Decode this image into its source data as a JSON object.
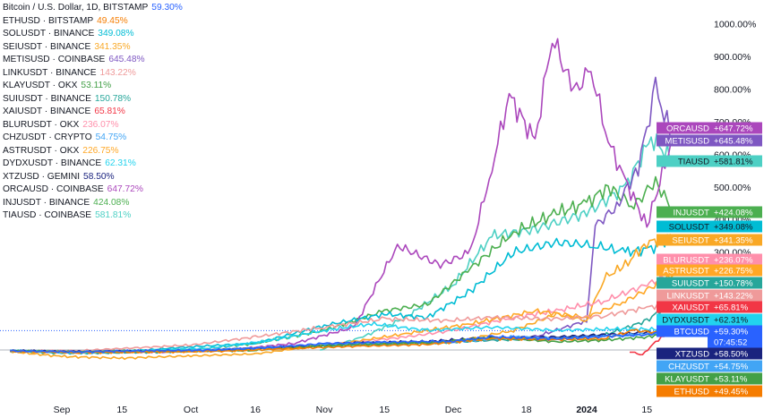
{
  "chart_data": {
    "type": "line",
    "title": "Bitcoin / U.S. Dollar, 1D, BITSTAMP",
    "y_unit": "percent change",
    "y_ticks": [
      "1000.00%",
      "900.00%",
      "800.00%",
      "700.00%",
      "600.00%",
      "500.00%",
      "400.00%",
      "300.00%"
    ],
    "x_ticks": [
      {
        "label": "Sep",
        "date": "2023-09-01",
        "bold": false
      },
      {
        "label": "15",
        "date": "2023-09-15",
        "bold": false
      },
      {
        "label": "Oct",
        "date": "2023-10-01",
        "bold": false
      },
      {
        "label": "16",
        "date": "2023-10-16",
        "bold": false
      },
      {
        "label": "Nov",
        "date": "2023-11-01",
        "bold": false
      },
      {
        "label": "15",
        "date": "2023-11-15",
        "bold": false
      },
      {
        "label": "Dec",
        "date": "2023-12-01",
        "bold": false
      },
      {
        "label": "18",
        "date": "2023-12-18",
        "bold": false
      },
      {
        "label": "2024",
        "date": "2024-01-01",
        "bold": true
      },
      {
        "label": "15",
        "date": "2024-01-15",
        "bold": false
      }
    ],
    "last_tag_time": "07:45:52",
    "series": [
      {
        "name": "Bitcoin / U.S. Dollar, 1D, BITSTAMP",
        "symbol": "BTCUSD",
        "value": 59.3,
        "value_text": "59.30%",
        "tag_text": "+59.30%",
        "color": "#2962ff",
        "points": [
          [
            "2023-08-20",
            -3
          ],
          [
            "2023-09-05",
            -6
          ],
          [
            "2023-09-20",
            -2
          ],
          [
            "2023-10-05",
            -1
          ],
          [
            "2023-10-20",
            8
          ],
          [
            "2023-11-01",
            20
          ],
          [
            "2023-11-15",
            24
          ],
          [
            "2023-12-01",
            27
          ],
          [
            "2023-12-10",
            40
          ],
          [
            "2023-12-25",
            35
          ],
          [
            "2024-01-05",
            42
          ],
          [
            "2024-01-15",
            47
          ],
          [
            "2024-01-21",
            59
          ]
        ]
      },
      {
        "name": "ETHUSD · BITSTAMP",
        "symbol": "ETHUSD",
        "value": 49.45,
        "value_text": "49.45%",
        "tag_text": "+49.45%",
        "color": "#f57c00",
        "points": [
          [
            "2023-08-20",
            -4
          ],
          [
            "2023-09-05",
            -8
          ],
          [
            "2023-09-25",
            -6
          ],
          [
            "2023-10-10",
            -3
          ],
          [
            "2023-10-25",
            5
          ],
          [
            "2023-11-10",
            12
          ],
          [
            "2023-11-25",
            17
          ],
          [
            "2023-12-10",
            35
          ],
          [
            "2023-12-25",
            32
          ],
          [
            "2024-01-05",
            35
          ],
          [
            "2024-01-12",
            60
          ],
          [
            "2024-01-21",
            49
          ]
        ]
      },
      {
        "name": "SOLUSDT · BINANCE",
        "symbol": "SOLUSDT",
        "value": 349.08,
        "value_text": "349.08%",
        "tag_text": "+349.08%",
        "color": "#00bcd4",
        "points": [
          [
            "2023-08-20",
            -2
          ],
          [
            "2023-09-01",
            -10
          ],
          [
            "2023-09-15",
            -5
          ],
          [
            "2023-10-01",
            10
          ],
          [
            "2023-10-16",
            20
          ],
          [
            "2023-11-01",
            75
          ],
          [
            "2023-11-15",
            110
          ],
          [
            "2023-11-25",
            100
          ],
          [
            "2023-12-05",
            180
          ],
          [
            "2023-12-15",
            300
          ],
          [
            "2023-12-25",
            330
          ],
          [
            "2024-01-03",
            320
          ],
          [
            "2024-01-10",
            300
          ],
          [
            "2024-01-16",
            310
          ],
          [
            "2024-01-21",
            349
          ]
        ]
      },
      {
        "name": "SEIUSDT · BINANCE",
        "symbol": "SEIUSDT",
        "value": 341.35,
        "value_text": "341.35%",
        "tag_text": "+341.35%",
        "color": "#f9a825",
        "points": [
          [
            "2023-08-20",
            -5
          ],
          [
            "2023-09-01",
            -20
          ],
          [
            "2023-09-15",
            -25
          ],
          [
            "2023-10-01",
            -18
          ],
          [
            "2023-10-16",
            -12
          ],
          [
            "2023-11-01",
            15
          ],
          [
            "2023-11-15",
            20
          ],
          [
            "2023-12-01",
            25
          ],
          [
            "2023-12-15",
            60
          ],
          [
            "2023-12-25",
            110
          ],
          [
            "2024-01-01",
            90
          ],
          [
            "2024-01-05",
            220
          ],
          [
            "2024-01-10",
            260
          ],
          [
            "2024-01-15",
            330
          ],
          [
            "2024-01-21",
            341
          ]
        ]
      },
      {
        "name": "METISUSD · COINBASE",
        "symbol": "METISUSD",
        "value": 645.48,
        "value_text": "645.48%",
        "tag_text": "+645.48%",
        "color": "#7e57c2",
        "points": [
          [
            "2023-08-20",
            -3
          ],
          [
            "2023-09-05",
            -5
          ],
          [
            "2023-10-05",
            0
          ],
          [
            "2023-10-25",
            10
          ],
          [
            "2023-11-15",
            20
          ],
          [
            "2023-12-05",
            30
          ],
          [
            "2023-12-20",
            40
          ],
          [
            "2024-01-01",
            90
          ],
          [
            "2024-01-03",
            380
          ],
          [
            "2024-01-08",
            440
          ],
          [
            "2024-01-13",
            560
          ],
          [
            "2024-01-17",
            800
          ],
          [
            "2024-01-21",
            645
          ]
        ]
      },
      {
        "name": "LINKUSDT · BINANCE",
        "symbol": "LINKUSDT",
        "value": 143.22,
        "value_text": "143.22%",
        "tag_text": "+143.22%",
        "color": "#ef9a9a",
        "points": [
          [
            "2023-08-20",
            -2
          ],
          [
            "2023-09-05",
            -2
          ],
          [
            "2023-10-01",
            15
          ],
          [
            "2023-10-16",
            40
          ],
          [
            "2023-11-01",
            70
          ],
          [
            "2023-11-15",
            95
          ],
          [
            "2023-11-30",
            90
          ],
          [
            "2023-12-10",
            100
          ],
          [
            "2023-12-25",
            95
          ],
          [
            "2024-01-05",
            105
          ],
          [
            "2024-01-15",
            130
          ],
          [
            "2024-01-21",
            143
          ]
        ]
      },
      {
        "name": "KLAYUSDT · OKX",
        "symbol": "KLAYUSDT",
        "value": 53.11,
        "value_text": "53.11%",
        "tag_text": "+53.11%",
        "color": "#43a047",
        "points": [
          [
            "2023-08-20",
            -3
          ],
          [
            "2023-09-05",
            -6
          ],
          [
            "2023-09-25",
            -4
          ],
          [
            "2023-10-15",
            -2
          ],
          [
            "2023-10-28",
            10
          ],
          [
            "2023-11-10",
            18
          ],
          [
            "2023-11-25",
            22
          ],
          [
            "2023-12-10",
            38
          ],
          [
            "2023-12-25",
            25
          ],
          [
            "2024-01-05",
            30
          ],
          [
            "2024-01-15",
            40
          ],
          [
            "2024-01-21",
            53
          ]
        ]
      },
      {
        "name": "SUIUSDT · BINANCE",
        "symbol": "SUIUSDT",
        "value": 150.78,
        "value_text": "150.78%",
        "tag_text": "+150.78%",
        "color": "#26a69a",
        "points": [
          [
            "2023-08-20",
            -3
          ],
          [
            "2023-09-05",
            -10
          ],
          [
            "2023-09-25",
            -6
          ],
          [
            "2023-10-10",
            0
          ],
          [
            "2023-10-25",
            10
          ],
          [
            "2023-11-10",
            15
          ],
          [
            "2023-11-25",
            20
          ],
          [
            "2023-12-10",
            30
          ],
          [
            "2023-12-25",
            35
          ],
          [
            "2024-01-05",
            45
          ],
          [
            "2024-01-15",
            90
          ],
          [
            "2024-01-21",
            150
          ]
        ]
      },
      {
        "name": "XAIUSDT · BINANCE",
        "symbol": "XAIUSDT",
        "value": 65.81,
        "value_text": "65.81%",
        "tag_text": "+65.81%",
        "color": "#f23645",
        "points": [
          [
            "2024-01-11",
            -5
          ],
          [
            "2024-01-14",
            -15
          ],
          [
            "2024-01-17",
            25
          ],
          [
            "2024-01-19",
            45
          ],
          [
            "2024-01-21",
            65
          ]
        ]
      },
      {
        "name": "BLURUSDT · OKX",
        "symbol": "BLURUSDT",
        "value": 236.07,
        "value_text": "236.07%",
        "tag_text": "+236.07%",
        "color": "#ff8fab",
        "points": [
          [
            "2023-08-20",
            -3
          ],
          [
            "2023-09-05",
            -6
          ],
          [
            "2023-10-01",
            -2
          ],
          [
            "2023-10-16",
            6
          ],
          [
            "2023-11-01",
            15
          ],
          [
            "2023-11-20",
            40
          ],
          [
            "2023-12-01",
            60
          ],
          [
            "2023-12-15",
            100
          ],
          [
            "2023-12-25",
            120
          ],
          [
            "2024-01-05",
            150
          ],
          [
            "2024-01-15",
            200
          ],
          [
            "2024-01-21",
            236
          ]
        ]
      },
      {
        "name": "CHZUSDT · CRYPTO",
        "symbol": "CHZUSDT",
        "value": 54.75,
        "value_text": "54.75%",
        "tag_text": "+54.75%",
        "color": "#42a5f5",
        "points": [
          [
            "2023-08-20",
            -2
          ],
          [
            "2023-09-05",
            -5
          ],
          [
            "2023-09-25",
            -3
          ],
          [
            "2023-10-15",
            5
          ],
          [
            "2023-11-01",
            18
          ],
          [
            "2023-11-15",
            22
          ],
          [
            "2023-12-01",
            25
          ],
          [
            "2023-12-15",
            40
          ],
          [
            "2023-12-25",
            35
          ],
          [
            "2024-01-10",
            45
          ],
          [
            "2024-01-21",
            55
          ]
        ]
      },
      {
        "name": "ASTRUSDT · OKX",
        "symbol": "ASTRUSDT",
        "value": 226.75,
        "value_text": "226.75%",
        "tag_text": "+226.75%",
        "color": "#ffa726",
        "points": [
          [
            "2023-08-20",
            -4
          ],
          [
            "2023-09-05",
            -8
          ],
          [
            "2023-10-01",
            -5
          ],
          [
            "2023-10-20",
            5
          ],
          [
            "2023-11-05",
            20
          ],
          [
            "2023-11-20",
            50
          ],
          [
            "2023-12-05",
            80
          ],
          [
            "2023-12-20",
            120
          ],
          [
            "2024-01-01",
            100
          ],
          [
            "2024-01-10",
            150
          ],
          [
            "2024-01-21",
            227
          ]
        ]
      },
      {
        "name": "DYDXUSDT · BINANCE",
        "symbol": "DYDXUSDT",
        "value": 62.31,
        "value_text": "62.31%",
        "tag_text": "+62.31%",
        "color": "#22d3ee",
        "points": [
          [
            "2023-08-20",
            -3
          ],
          [
            "2023-09-05",
            -8
          ],
          [
            "2023-09-20",
            -2
          ],
          [
            "2023-10-05",
            5
          ],
          [
            "2023-10-20",
            30
          ],
          [
            "2023-11-01",
            60
          ],
          [
            "2023-11-12",
            80
          ],
          [
            "2023-11-25",
            60
          ],
          [
            "2023-12-10",
            70
          ],
          [
            "2023-12-25",
            60
          ],
          [
            "2024-01-10",
            65
          ],
          [
            "2024-01-21",
            62
          ]
        ]
      },
      {
        "name": "XTZUSD · GEMINI",
        "symbol": "XTZUSD",
        "value": 58.5,
        "value_text": "58.50%",
        "tag_text": "+58.50%",
        "color": "#1a237e",
        "points": [
          [
            "2023-08-20",
            -2
          ],
          [
            "2023-09-05",
            -5
          ],
          [
            "2023-10-05",
            -1
          ],
          [
            "2023-10-25",
            10
          ],
          [
            "2023-11-10",
            22
          ],
          [
            "2023-11-25",
            26
          ],
          [
            "2023-12-10",
            38
          ],
          [
            "2023-12-25",
            40
          ],
          [
            "2024-01-10",
            50
          ],
          [
            "2024-01-21",
            58
          ]
        ]
      },
      {
        "name": "ORCAUSD · COINBASE",
        "symbol": "ORCAUSD",
        "value": 647.72,
        "value_text": "647.72%",
        "tag_text": "+647.72%",
        "color": "#ab47bc",
        "points": [
          [
            "2023-08-20",
            -3
          ],
          [
            "2023-09-05",
            -8
          ],
          [
            "2023-09-25",
            -5
          ],
          [
            "2023-10-10",
            0
          ],
          [
            "2023-10-25",
            20
          ],
          [
            "2023-11-08",
            70
          ],
          [
            "2023-11-18",
            320
          ],
          [
            "2023-11-28",
            260
          ],
          [
            "2023-12-05",
            300
          ],
          [
            "2023-12-10",
            560
          ],
          [
            "2023-12-14",
            780
          ],
          [
            "2023-12-20",
            640
          ],
          [
            "2023-12-24",
            960
          ],
          [
            "2023-12-29",
            790
          ],
          [
            "2024-01-02",
            860
          ],
          [
            "2024-01-06",
            640
          ],
          [
            "2024-01-10",
            520
          ],
          [
            "2024-01-15",
            380
          ],
          [
            "2024-01-21",
            648
          ]
        ]
      },
      {
        "name": "INJUSDT · BINANCE",
        "symbol": "INJUSDT",
        "value": 424.08,
        "value_text": "424.08%",
        "tag_text": "+424.08%",
        "color": "#4caf50",
        "points": [
          [
            "2023-08-20",
            -2
          ],
          [
            "2023-09-05",
            -4
          ],
          [
            "2023-10-01",
            0
          ],
          [
            "2023-10-16",
            20
          ],
          [
            "2023-11-01",
            60
          ],
          [
            "2023-11-15",
            120
          ],
          [
            "2023-11-25",
            140
          ],
          [
            "2023-12-05",
            250
          ],
          [
            "2023-12-15",
            360
          ],
          [
            "2023-12-25",
            420
          ],
          [
            "2024-01-01",
            450
          ],
          [
            "2024-01-06",
            500
          ],
          [
            "2024-01-12",
            440
          ],
          [
            "2024-01-17",
            520
          ],
          [
            "2024-01-21",
            424
          ]
        ]
      },
      {
        "name": "TIAUSD · COINBASE",
        "symbol": "TIAUSD",
        "value": 581.81,
        "value_text": "581.81%",
        "tag_text": "+581.81%",
        "color": "#4dd0c4",
        "points": [
          [
            "2023-10-31",
            0
          ],
          [
            "2023-11-10",
            40
          ],
          [
            "2023-11-20",
            100
          ],
          [
            "2023-12-01",
            200
          ],
          [
            "2023-12-10",
            350
          ],
          [
            "2023-12-20",
            370
          ],
          [
            "2024-01-01",
            420
          ],
          [
            "2024-01-10",
            500
          ],
          [
            "2024-01-16",
            650
          ],
          [
            "2024-01-21",
            582
          ]
        ]
      }
    ]
  }
}
